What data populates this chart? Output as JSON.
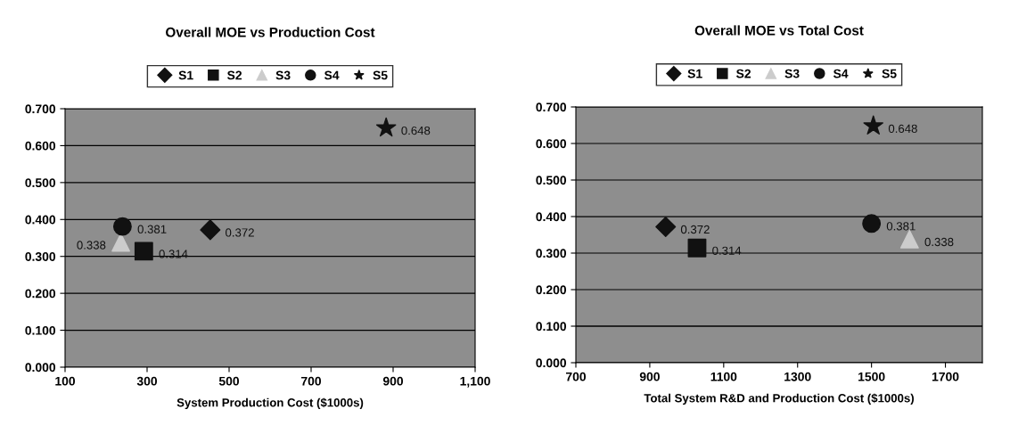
{
  "chart_data": [
    {
      "type": "scatter",
      "title": "Overall MOE vs Production Cost",
      "xlabel": "System Production Cost ($1000s)",
      "xlim": [
        100,
        1100
      ],
      "xticks": [
        100,
        300,
        500,
        700,
        900,
        {
          "value": 1100,
          "label": "1,100"
        }
      ],
      "ylim": [
        0,
        0.7
      ],
      "yticks": [
        {
          "value": 0,
          "label": "0.000"
        },
        {
          "value": 0.1,
          "label": "0.100"
        },
        {
          "value": 0.2,
          "label": "0.200"
        },
        {
          "value": 0.3,
          "label": "0.300"
        },
        {
          "value": 0.4,
          "label": "0.400"
        },
        {
          "value": 0.5,
          "label": "0.500"
        },
        {
          "value": 0.6,
          "label": "0.600"
        },
        {
          "value": 0.7,
          "label": "0.700"
        }
      ],
      "grid": "y",
      "legend": "top",
      "data_labels": true,
      "series": [
        {
          "name": "S1",
          "color": "#111111",
          "marker": "diamond",
          "x": [
            454
          ],
          "values": [
            0.372
          ]
        },
        {
          "name": "S2",
          "color": "#111111",
          "marker": "square",
          "x": [
            292
          ],
          "values": [
            0.314
          ]
        },
        {
          "name": "S3",
          "color": "#cccccc",
          "marker": "triangle",
          "x": [
            236
          ],
          "values": [
            0.338
          ]
        },
        {
          "name": "S4",
          "color": "#111111",
          "marker": "circle",
          "x": [
            240
          ],
          "values": [
            0.381
          ]
        },
        {
          "name": "S5",
          "color": "#111111",
          "marker": "star",
          "x": [
            883
          ],
          "values": [
            0.648
          ]
        }
      ]
    },
    {
      "type": "scatter",
      "title": "Overall MOE vs Total Cost",
      "xlabel": "Total System R&D and Production Cost ($1000s)",
      "xlim": [
        700,
        1800
      ],
      "xticks": [
        700,
        900,
        1100,
        1300,
        1500,
        1700
      ],
      "ylim": [
        0,
        0.7
      ],
      "yticks": [
        {
          "value": 0,
          "label": "0.000"
        },
        {
          "value": 0.1,
          "label": "0.100"
        },
        {
          "value": 0.2,
          "label": "0.200"
        },
        {
          "value": 0.3,
          "label": "0.300"
        },
        {
          "value": 0.4,
          "label": "0.400"
        },
        {
          "value": 0.5,
          "label": "0.500"
        },
        {
          "value": 0.6,
          "label": "0.600"
        },
        {
          "value": 0.7,
          "label": "0.700"
        }
      ],
      "grid": "y",
      "legend": "top",
      "data_labels": true,
      "series": [
        {
          "name": "S1",
          "color": "#111111",
          "marker": "diamond",
          "x": [
            943
          ],
          "values": [
            0.372
          ]
        },
        {
          "name": "S2",
          "color": "#111111",
          "marker": "square",
          "x": [
            1028
          ],
          "values": [
            0.314
          ]
        },
        {
          "name": "S3",
          "color": "#cccccc",
          "marker": "triangle",
          "x": [
            1603
          ],
          "values": [
            0.338
          ]
        },
        {
          "name": "S4",
          "color": "#111111",
          "marker": "circle",
          "x": [
            1500
          ],
          "values": [
            0.381
          ]
        },
        {
          "name": "S5",
          "color": "#111111",
          "marker": "star",
          "x": [
            1505
          ],
          "values": [
            0.648
          ]
        }
      ]
    }
  ]
}
